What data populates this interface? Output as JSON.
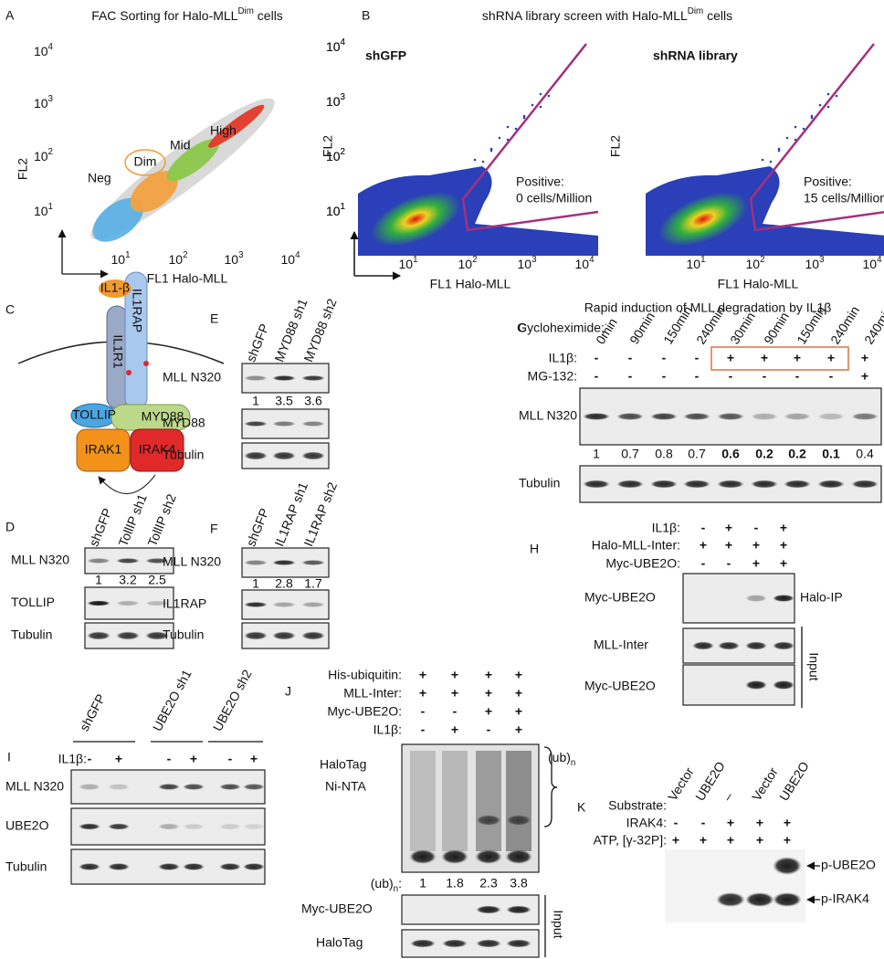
{
  "A": {
    "label": "A",
    "title": [
      "FAC Sorting  for Halo-MLL",
      "Dim",
      " cells"
    ],
    "y_axis": "FL2",
    "x_axis": "FL1 Halo-MLL",
    "ticks": [
      [
        "10",
        "1"
      ],
      [
        "10",
        "2"
      ],
      [
        "10",
        "3"
      ],
      [
        "10",
        "4"
      ]
    ],
    "gates": [
      "Neg",
      "Dim",
      "Mid",
      "High"
    ]
  },
  "B": {
    "label": "B",
    "title": [
      "shRNA library screen with Halo-MLL",
      "Dim",
      " cells"
    ],
    "plots": [
      {
        "name": "shGFP",
        "note": [
          "Positive:",
          "0 cells/Million"
        ],
        "y_axis": "FL2",
        "x_axis": "FL1 Halo-MLL",
        "ticks": [
          [
            "10",
            "1"
          ],
          [
            "10",
            "2"
          ],
          [
            "10",
            "3"
          ],
          [
            "10",
            "4"
          ]
        ]
      },
      {
        "name": "shRNA library",
        "note": [
          "Positive:",
          "15 cells/Million"
        ],
        "y_axis": "FL2",
        "x_axis": "FL1 Halo-MLL",
        "ticks": [
          [
            "10",
            "1"
          ],
          [
            "10",
            "2"
          ],
          [
            "10",
            "3"
          ],
          [
            "10",
            "4"
          ]
        ]
      }
    ]
  },
  "C": {
    "label": "C",
    "nodes": [
      "IL1-β",
      "IL1RAP",
      "IL1R1",
      "TOLLIP",
      "MYD88",
      "IRAK1",
      "IRAK4"
    ]
  },
  "D": {
    "label": "D",
    "lanes": [
      "shGFP",
      "TollIP sh1",
      "TollIP sh2"
    ],
    "rows": [
      "MLL N320",
      "TOLLIP",
      "Tubulin"
    ],
    "quant": [
      "1",
      "3.2",
      "2.5"
    ]
  },
  "E": {
    "label": "E",
    "lanes": [
      "shGFP",
      "MYD88 sh1",
      "MYD88 sh2"
    ],
    "rows": [
      "MLL N320",
      "MYD88",
      "Tubulin"
    ],
    "quant": [
      "1",
      "3.5",
      "3.6"
    ]
  },
  "F": {
    "label": "F",
    "lanes": [
      "shGFP",
      "IL1RAP sh1",
      "IL1RAP sh2"
    ],
    "rows": [
      "MLL N320",
      "IL1RAP",
      "Tubulin"
    ],
    "quant": [
      "1",
      "2.8",
      "1.7"
    ]
  },
  "G": {
    "label": "G",
    "title": "Rapid induction of MLL degradation by IL1β",
    "conditions": [
      {
        "name": "Cycloheximide:",
        "values": [
          "0min",
          "90min",
          "150min",
          "240min",
          "30min",
          "90min",
          "150min",
          "240min",
          "240min"
        ]
      },
      {
        "name": "IL1β:",
        "values": [
          "-",
          "-",
          "-",
          "-",
          "+",
          "+",
          "+",
          "+",
          "+"
        ]
      },
      {
        "name": "MG-132:",
        "values": [
          "-",
          "-",
          "-",
          "-",
          "-",
          "-",
          "-",
          "-",
          "+"
        ]
      }
    ],
    "rows": [
      "MLL N320",
      "Tubulin"
    ],
    "quant": [
      "1",
      "0.7",
      "0.8",
      "0.7",
      "0.6",
      "0.2",
      "0.2",
      "0.1",
      "0.4"
    ]
  },
  "H": {
    "label": "H",
    "conditions": [
      {
        "name": "IL1β:",
        "values": [
          "-",
          "+",
          "-",
          "+"
        ]
      },
      {
        "name": "Halo-MLL-Inter:",
        "values": [
          "+",
          "+",
          "+",
          "+"
        ]
      },
      {
        "name": "Myc-UBE2O:",
        "values": [
          "-",
          "-",
          "+",
          "+"
        ]
      }
    ],
    "rows": [
      "Myc-UBE2O",
      "MLL-Inter",
      "Myc-UBE2O"
    ],
    "ip_label": "Halo-IP",
    "input_label": "Input"
  },
  "I": {
    "label": "I",
    "groups": [
      "shGFP",
      "UBE2O sh1",
      "UBE2O sh2"
    ],
    "conditions": [
      {
        "name": "IL1β:",
        "values": [
          "-",
          "+",
          "-",
          "+",
          "-",
          "+"
        ]
      }
    ],
    "rows": [
      "MLL N320",
      "UBE2O",
      "Tubulin"
    ]
  },
  "J": {
    "label": "J",
    "conditions": [
      {
        "name": "His-ubiquitin:",
        "values": [
          "+",
          "+",
          "+",
          "+"
        ]
      },
      {
        "name": "MLL-Inter:",
        "values": [
          "+",
          "+",
          "+",
          "+"
        ]
      },
      {
        "name": "Myc-UBE2O:",
        "values": [
          "-",
          "-",
          "+",
          "+"
        ]
      },
      {
        "name": "IL1β:",
        "values": [
          "-",
          "+",
          "-",
          "+"
        ]
      }
    ],
    "blot_labels": [
      "HaloTag",
      "Ni-NTA"
    ],
    "ub_label": [
      "(ub)",
      "n"
    ],
    "quant_label": [
      "(ub)",
      "n",
      ":"
    ],
    "quant": [
      "1",
      "1.8",
      "2.3",
      "3.8"
    ],
    "rows": [
      "Myc-UBE2O",
      "HaloTag"
    ],
    "input_label": "Input"
  },
  "K": {
    "label": "K",
    "conditions": [
      {
        "name": "Substrate:",
        "values": [
          "Vector",
          "UBE2O",
          "–",
          "Vector",
          "UBE2O"
        ]
      },
      {
        "name": "IRAK4:",
        "values": [
          "-",
          "-",
          "+",
          "+",
          "+"
        ]
      },
      {
        "name": "ATP, [γ-32P]:",
        "values": [
          "+",
          "+",
          "+",
          "+",
          "+"
        ]
      }
    ],
    "bands": [
      "p-UBE2O",
      "p-IRAK4"
    ]
  }
}
